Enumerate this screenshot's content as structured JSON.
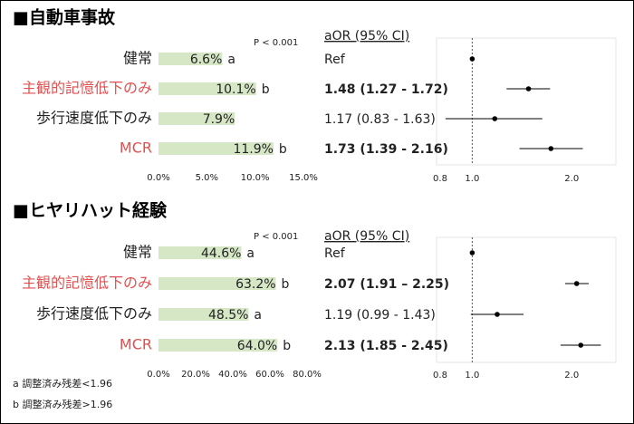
{
  "chart_data": [
    {
      "type": "bar",
      "title": "■自動車事故",
      "annotation": "P < 0.001",
      "categories": [
        "健常",
        "主観的記憶低下のみ",
        "歩行速度低下のみ",
        "MCR"
      ],
      "category_colors": [
        "#222222",
        "#e05050",
        "#222222",
        "#e05050"
      ],
      "values": [
        6.6,
        10.1,
        7.9,
        11.9
      ],
      "value_labels": [
        "6.6%",
        "10.1%",
        "7.9%",
        "11.9%"
      ],
      "letters": [
        "a",
        "b",
        null,
        "b"
      ],
      "color": "#d6e7c6",
      "xlim": [
        0,
        15
      ],
      "xticks": [
        {
          "value": 0,
          "label": "0.0%"
        },
        {
          "value": 5,
          "label": "5.0%"
        },
        {
          "value": 10,
          "label": "10.0%"
        },
        {
          "value": 15,
          "label": "15.0%"
        }
      ]
    },
    {
      "type": "forest",
      "header": "aOR (95% CI)",
      "values": [
        1,
        1.48,
        1.17,
        1.73
      ],
      "lower": [
        null,
        1.27,
        0.83,
        1.39
      ],
      "upper": [
        null,
        1.72,
        1.63,
        2.16
      ],
      "value_labels": [
        "Ref",
        "1.48 (1.27 - 1.72)",
        "1.17 (0.83 - 1.63)",
        "1.73 (1.39 - 2.16)"
      ],
      "bold": [
        false,
        true,
        false,
        true
      ],
      "log_scale": true,
      "reference": 1,
      "xlim": [
        0.78,
        2.72
      ],
      "xticks": [
        0.8,
        {
          "value": 1,
          "label": "1.0"
        },
        {
          "value": 2,
          "label": "2.0"
        }
      ]
    },
    {
      "type": "bar",
      "title": "■ヒヤリハット経験",
      "annotation": "P < 0.001",
      "categories": [
        "健常",
        "主観的記憶低下のみ",
        "歩行速度低下のみ",
        "MCR"
      ],
      "category_colors": [
        "#222222",
        "#e05050",
        "#222222",
        "#e05050"
      ],
      "values": [
        44.6,
        63.2,
        48.5,
        64.0
      ],
      "value_labels": [
        "44.6%",
        "63.2%",
        "48.5%",
        "64.0%"
      ],
      "letters": [
        "a",
        "b",
        "a",
        "b"
      ],
      "color": "#d6e7c6",
      "xlim": [
        0,
        80
      ],
      "xticks": [
        {
          "value": 0,
          "label": "0.0%"
        },
        {
          "value": 20,
          "label": "20.0%"
        },
        {
          "value": 40,
          "label": "40.0%"
        },
        {
          "value": 60,
          "label": "60.0%"
        },
        {
          "value": 80,
          "label": "80.0%"
        }
      ],
      "footnotes": [
        "a 調整済み残差<1.96",
        "b 調整済み残差>1.96"
      ]
    },
    {
      "type": "forest",
      "header": "aOR (95% CI)",
      "values": [
        1,
        2.07,
        1.19,
        2.13
      ],
      "lower": [
        null,
        1.91,
        0.99,
        1.85
      ],
      "upper": [
        null,
        2.25,
        1.43,
        2.45
      ],
      "value_labels": [
        "Ref",
        "2.07 (1.91 – 2.25)",
        "1.19 (0.99 - 1.43)",
        "2.13 (1.85 - 2.45)"
      ],
      "bold": [
        false,
        true,
        false,
        true
      ],
      "log_scale": true,
      "reference": 1,
      "xlim": [
        0.78,
        2.72
      ],
      "xticks": [
        0.8,
        {
          "value": 1,
          "label": "1.0"
        },
        {
          "value": 2,
          "label": "2.0"
        }
      ]
    }
  ]
}
